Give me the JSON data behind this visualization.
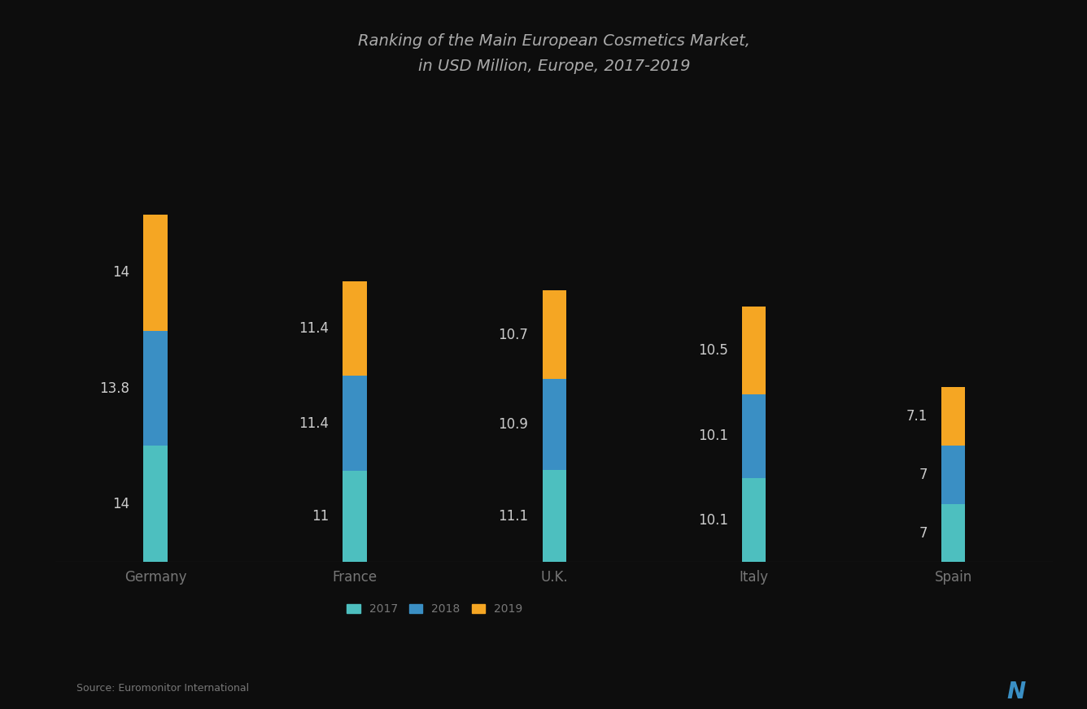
{
  "title_line1": "Ranking of the Main European Cosmetics Market,",
  "title_line2": "in USD Million, Europe, 2017-2019",
  "categories": [
    "Germany",
    "France",
    "U.K.",
    "Italy",
    "Spain"
  ],
  "seg1_values": [
    14.0,
    11.0,
    11.1,
    10.1,
    7.0
  ],
  "seg2_values": [
    13.8,
    11.4,
    10.9,
    10.1,
    7.0
  ],
  "seg3_values": [
    14.0,
    11.4,
    10.7,
    10.5,
    7.1
  ],
  "seg1_labels": [
    "14",
    "11",
    "11.1",
    "10.1",
    "7"
  ],
  "seg2_labels": [
    "13.8",
    "11.4",
    "10.9",
    "10.1",
    "7"
  ],
  "seg3_labels": [
    "14",
    "11.4",
    "10.7",
    "10.5",
    "7.1"
  ],
  "seg1_color": "#4DBFBF",
  "seg2_color": "#3A8FC4",
  "seg3_color": "#F5A623",
  "legend_labels": [
    "2017",
    "2018",
    "2019"
  ],
  "source_text": "Source: Euromonitor International",
  "bar_width": 0.12,
  "background_color": "#0d0d0d",
  "text_color": "#CCCCCC",
  "title_color": "#AAAAAA",
  "label_color": "#CCCCCC",
  "axis_label_color": "#777777",
  "ylim_max": 55
}
